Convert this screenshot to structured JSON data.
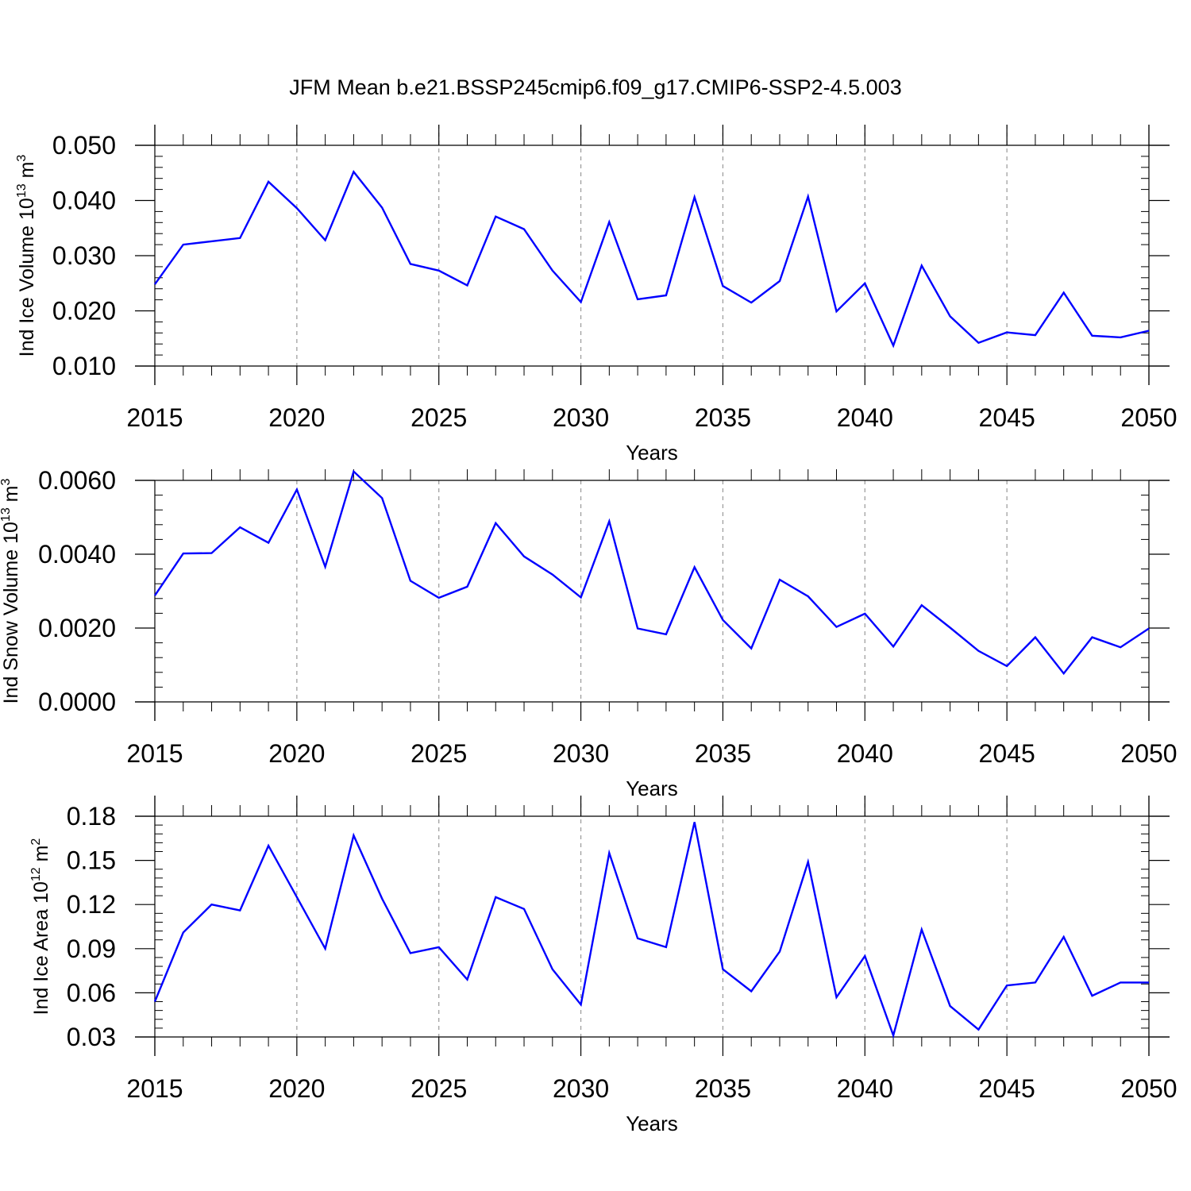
{
  "title": "JFM Mean b.e21.BSSP245cmip6.f09_g17.CMIP6-SSP2-4.5.003",
  "colors": {
    "line": "#0000ff",
    "axis": "#000000",
    "grid": "#999999"
  },
  "chart_data": [
    {
      "type": "line",
      "ylabel": {
        "main": "Ind Ice Volume 10",
        "exp": "13",
        "unit": " m",
        "unit_exp": "3"
      },
      "xlabel": "Years",
      "xlim": [
        2015,
        2050
      ],
      "ylim": [
        0.01,
        0.05
      ],
      "xticks": [
        2015,
        2020,
        2025,
        2030,
        2035,
        2040,
        2045,
        2050
      ],
      "xtick_labels": [
        "2015",
        "2020",
        "2025",
        "2030",
        "2035",
        "2040",
        "2045",
        "2050"
      ],
      "yticks": [
        0.01,
        0.02,
        0.03,
        0.04,
        0.05
      ],
      "ytick_labels": [
        "0.010",
        "0.020",
        "0.030",
        "0.040",
        "0.050"
      ],
      "grid": "vertical dashed at major x ticks",
      "series": [
        {
          "x": [
            2015,
            2016,
            2017,
            2018,
            2019,
            2020,
            2021,
            2022,
            2023,
            2024,
            2025,
            2026,
            2027,
            2028,
            2029,
            2030,
            2031,
            2032,
            2033,
            2034,
            2035,
            2036,
            2037,
            2038,
            2039,
            2040,
            2041,
            2042,
            2043,
            2044,
            2045,
            2046,
            2047,
            2048,
            2049,
            2050
          ],
          "values": [
            0.0248,
            0.032,
            0.0326,
            0.0332,
            0.0434,
            0.0386,
            0.0328,
            0.0452,
            0.0387,
            0.0285,
            0.0273,
            0.0246,
            0.0371,
            0.0348,
            0.0273,
            0.0216,
            0.0361,
            0.0221,
            0.0228,
            0.0406,
            0.0245,
            0.0215,
            0.0254,
            0.0407,
            0.0199,
            0.025,
            0.0137,
            0.0282,
            0.019,
            0.0142,
            0.0161,
            0.0156,
            0.0233,
            0.0155,
            0.0152,
            0.0164
          ]
        }
      ]
    },
    {
      "type": "line",
      "ylabel": {
        "main": "Ind Snow Volume 10",
        "exp": "13",
        "unit": " m",
        "unit_exp": "3"
      },
      "xlabel": "Years",
      "xlim": [
        2015,
        2050
      ],
      "ylim": [
        0.0,
        0.007
      ],
      "xticks": [
        2015,
        2020,
        2025,
        2030,
        2035,
        2040,
        2045,
        2050
      ],
      "xtick_labels": [
        "2015",
        "2020",
        "2025",
        "2030",
        "2035",
        "2040",
        "2045",
        "2050"
      ],
      "yticks": [
        0.0,
        0.002,
        0.004,
        0.006
      ],
      "ytick_labels": [
        "0.0000",
        "0.0020",
        "0.0040",
        "0.0060"
      ],
      "grid": "vertical dashed at major x ticks",
      "series": [
        {
          "x": [
            2015,
            2016,
            2017,
            2018,
            2019,
            2020,
            2021,
            2022,
            2023,
            2024,
            2025,
            2026,
            2027,
            2028,
            2029,
            2030,
            2031,
            2032,
            2033,
            2034,
            2035,
            2036,
            2037,
            2038,
            2039,
            2040,
            2041,
            2042,
            2043,
            2044,
            2045,
            2046,
            2047,
            2048,
            2049,
            2050
          ],
          "values": [
            0.00288,
            0.00402,
            0.00403,
            0.00473,
            0.00431,
            0.00575,
            0.00366,
            0.00624,
            0.00552,
            0.00328,
            0.00282,
            0.00312,
            0.00484,
            0.00394,
            0.00345,
            0.00283,
            0.00489,
            0.00199,
            0.00183,
            0.00365,
            0.00222,
            0.00145,
            0.00331,
            0.00286,
            0.00203,
            0.00239,
            0.0015,
            0.00262,
            0.00201,
            0.00138,
            0.00097,
            0.00175,
            0.00077,
            0.00175,
            0.00148,
            0.00199
          ]
        }
      ]
    },
    {
      "type": "line",
      "ylabel": {
        "main": "Ind Ice Area 10",
        "exp": "12",
        "unit": " m",
        "unit_exp": "2"
      },
      "xlabel": "Years",
      "xlim": [
        2015,
        2050
      ],
      "ylim": [
        0.03,
        0.18
      ],
      "xticks": [
        2015,
        2020,
        2025,
        2030,
        2035,
        2040,
        2045,
        2050
      ],
      "xtick_labels": [
        "2015",
        "2020",
        "2025",
        "2030",
        "2035",
        "2040",
        "2045",
        "2050"
      ],
      "yticks": [
        0.03,
        0.06,
        0.09,
        0.12,
        0.15,
        0.18
      ],
      "ytick_labels": [
        "0.03",
        "0.06",
        "0.09",
        "0.12",
        "0.15",
        "0.18"
      ],
      "grid": "vertical dashed at major x ticks",
      "series": [
        {
          "x": [
            2015,
            2016,
            2017,
            2018,
            2019,
            2020,
            2021,
            2022,
            2023,
            2024,
            2025,
            2026,
            2027,
            2028,
            2029,
            2030,
            2031,
            2032,
            2033,
            2034,
            2035,
            2036,
            2037,
            2038,
            2039,
            2040,
            2041,
            2042,
            2043,
            2044,
            2045,
            2046,
            2047,
            2048,
            2049,
            2050
          ],
          "values": [
            0.054,
            0.101,
            0.12,
            0.116,
            0.16,
            0.125,
            0.09,
            0.167,
            0.124,
            0.087,
            0.091,
            0.069,
            0.125,
            0.117,
            0.076,
            0.052,
            0.155,
            0.097,
            0.091,
            0.176,
            0.076,
            0.061,
            0.088,
            0.149,
            0.057,
            0.085,
            0.031,
            0.103,
            0.051,
            0.035,
            0.065,
            0.067,
            0.098,
            0.058,
            0.067,
            0.067
          ]
        }
      ]
    }
  ]
}
